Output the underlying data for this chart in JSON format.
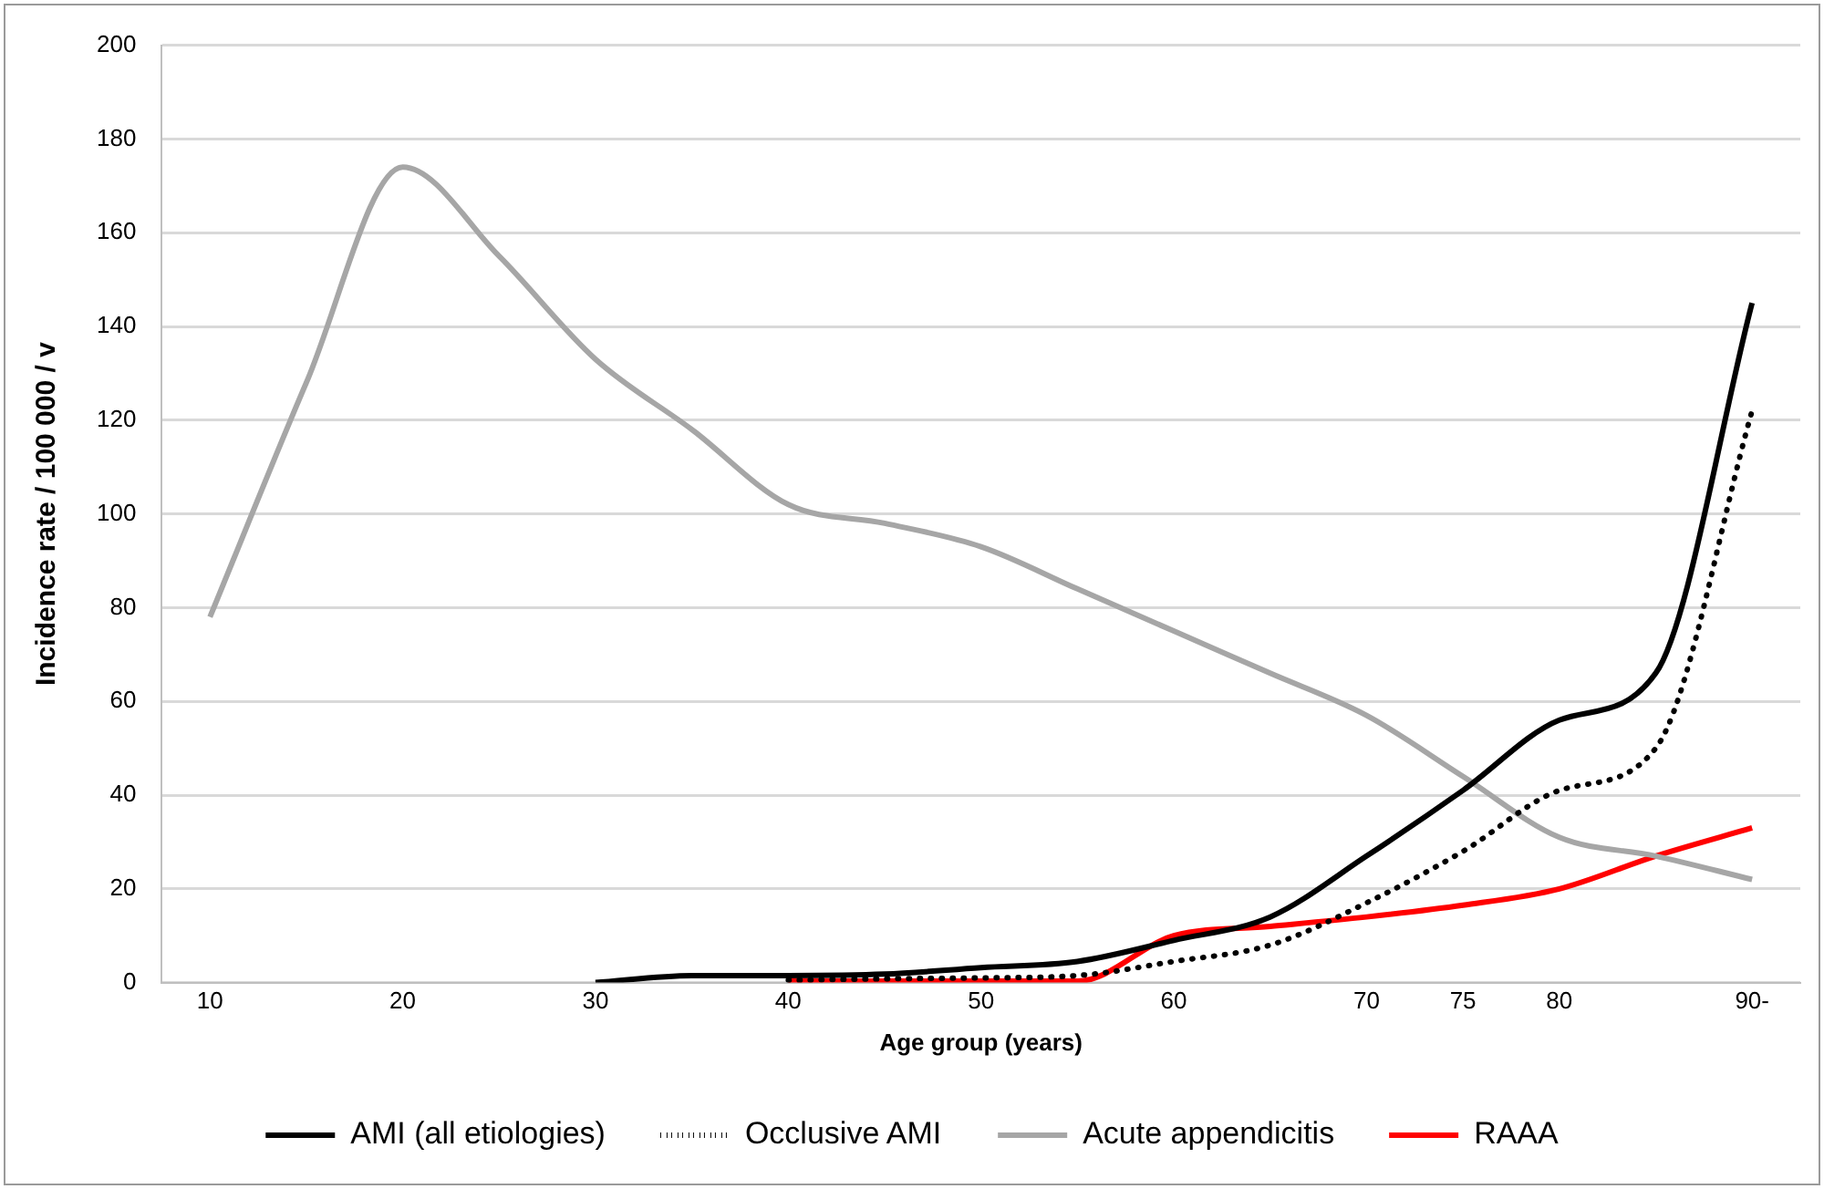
{
  "chart_data": {
    "type": "line",
    "xlabel": "Age group (years)",
    "ylabel": "Incidence rate / 100 000 / v",
    "xlim": [
      7.5,
      92.5
    ],
    "xticks": [
      10,
      20,
      30,
      40,
      50,
      60,
      70,
      75,
      80,
      {
        "value": 90,
        "label": "90-"
      }
    ],
    "ylim": [
      0,
      200
    ],
    "yticks": [
      0,
      20,
      40,
      60,
      80,
      100,
      120,
      140,
      160,
      180,
      200
    ],
    "grid": "y",
    "legend": "bottom",
    "marker": "none",
    "series": [
      {
        "name": "AMI (all etiologies)",
        "color": "#000000",
        "line_style": "solid",
        "x": [
          30,
          35,
          40,
          45,
          50,
          55,
          60,
          65,
          70,
          75,
          80,
          85,
          90
        ],
        "values": [
          0,
          1.5,
          1.5,
          1.8,
          3.2,
          4.5,
          9,
          14,
          27,
          41,
          56,
          66,
          145
        ]
      },
      {
        "name": "Occlusive AMI",
        "color": "#000000",
        "line_style": "dotted",
        "x": [
          40,
          45,
          50,
          55,
          60,
          65,
          70,
          75,
          80,
          85,
          90
        ],
        "values": [
          0.5,
          0.8,
          1,
          1.5,
          4.5,
          8,
          17,
          28,
          41,
          50,
          122
        ]
      },
      {
        "name": "Acute appendicitis",
        "color": "#a6a6a6",
        "line_style": "solid",
        "x": [
          10,
          15,
          20,
          25,
          30,
          35,
          40,
          45,
          50,
          55,
          60,
          65,
          70,
          75,
          80,
          85,
          90
        ],
        "values": [
          78,
          128,
          174,
          155,
          133,
          118,
          102,
          98,
          93,
          84,
          75,
          66,
          57,
          44,
          31,
          27,
          22
        ]
      },
      {
        "name": "RAAA",
        "color": "#ff0000",
        "line_style": "solid",
        "x": [
          40,
          45,
          50,
          55,
          60,
          65,
          70,
          75,
          80,
          85,
          90
        ],
        "values": [
          0.3,
          0.3,
          0.3,
          0.3,
          10,
          12,
          14,
          16.5,
          20,
          27,
          33
        ]
      }
    ]
  }
}
